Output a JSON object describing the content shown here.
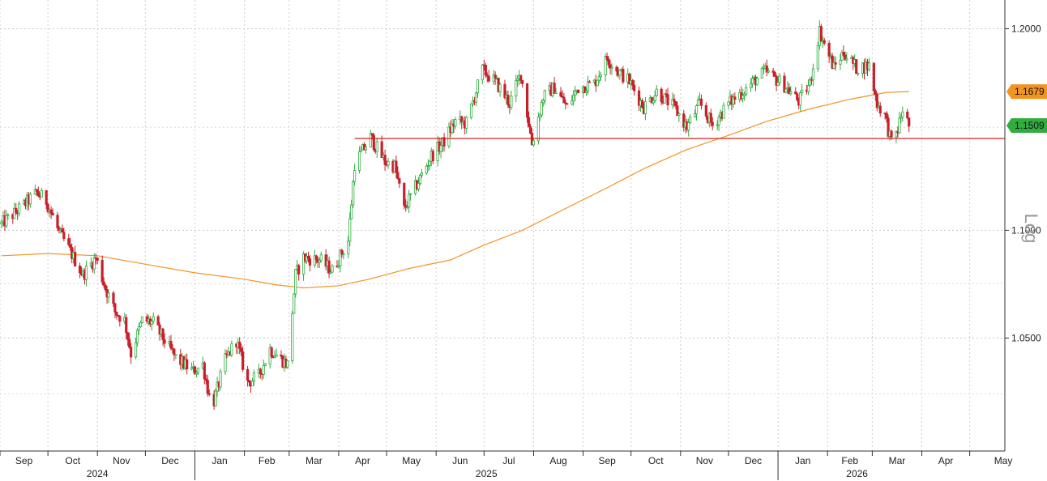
{
  "chart_data": {
    "type": "candlestick",
    "scale": "log",
    "scale_label": "Log",
    "grid": true,
    "ylim": [
      1.0,
      1.215
    ],
    "y_ticks": [
      {
        "value": 1.2,
        "label": "1.2000"
      },
      {
        "value": 1.1,
        "label": "1.1000"
      },
      {
        "value": 1.05,
        "label": "1.0500"
      }
    ],
    "month_ticks": [
      "Sep",
      "Oct",
      "Nov",
      "Dec",
      "Jan",
      "Feb",
      "Mar",
      "Apr",
      "May",
      "Jun",
      "Jul",
      "Aug",
      "Sep",
      "Oct",
      "Nov",
      "Dec",
      "Jan",
      "Feb",
      "Mar",
      "Apr",
      "May"
    ],
    "years": [
      "2024",
      "2025",
      "2026"
    ],
    "support_level": 1.1445,
    "price_tags": [
      {
        "value": 1.1679,
        "label": "1.1679",
        "color": "#f29422"
      },
      {
        "value": 1.1509,
        "label": "1.1509",
        "color": "#2fae3f"
      }
    ],
    "colors": {
      "up": "#2fae3f",
      "down": "#c8202b",
      "moving_average": "#f29422",
      "support_line": "#d42222"
    },
    "close_path": [
      [
        "2024-09-02",
        1.103
      ],
      [
        "2024-09-10",
        1.108
      ],
      [
        "2024-09-24",
        1.118
      ],
      [
        "2024-09-30",
        1.114
      ],
      [
        "2024-10-08",
        1.099
      ],
      [
        "2024-10-15",
        1.09
      ],
      [
        "2024-10-23",
        1.079
      ],
      [
        "2024-10-31",
        1.087
      ],
      [
        "2024-11-06",
        1.073
      ],
      [
        "2024-11-12",
        1.062
      ],
      [
        "2024-11-18",
        1.058
      ],
      [
        "2024-11-22",
        1.043
      ],
      [
        "2024-11-29",
        1.058
      ],
      [
        "2024-12-06",
        1.057
      ],
      [
        "2024-12-12",
        1.05
      ],
      [
        "2024-12-20",
        1.041
      ],
      [
        "2024-12-31",
        1.035
      ],
      [
        "2025-01-06",
        1.038
      ],
      [
        "2025-01-10",
        1.024
      ],
      [
        "2025-01-13",
        1.022
      ],
      [
        "2025-01-20",
        1.04
      ],
      [
        "2025-01-27",
        1.049
      ],
      [
        "2025-02-03",
        1.03
      ],
      [
        "2025-02-10",
        1.033
      ],
      [
        "2025-02-17",
        1.045
      ],
      [
        "2025-02-28",
        1.038
      ],
      [
        "2025-03-05",
        1.079
      ],
      [
        "2025-03-10",
        1.087
      ],
      [
        "2025-03-20",
        1.086
      ],
      [
        "2025-03-28",
        1.081
      ],
      [
        "2025-04-07",
        1.095
      ],
      [
        "2025-04-11",
        1.132
      ],
      [
        "2025-04-21",
        1.145
      ],
      [
        "2025-04-30",
        1.133
      ],
      [
        "2025-05-06",
        1.131
      ],
      [
        "2025-05-12",
        1.11
      ],
      [
        "2025-05-20",
        1.122
      ],
      [
        "2025-05-29",
        1.136
      ],
      [
        "2025-06-05",
        1.142
      ],
      [
        "2025-06-13",
        1.153
      ],
      [
        "2025-06-20",
        1.152
      ],
      [
        "2025-06-30",
        1.179
      ],
      [
        "2025-07-09",
        1.172
      ],
      [
        "2025-07-17",
        1.162
      ],
      [
        "2025-07-24",
        1.177
      ],
      [
        "2025-07-31",
        1.142
      ],
      [
        "2025-08-07",
        1.165
      ],
      [
        "2025-08-14",
        1.17
      ],
      [
        "2025-08-22",
        1.16
      ],
      [
        "2025-08-29",
        1.17
      ],
      [
        "2025-09-08",
        1.172
      ],
      [
        "2025-09-16",
        1.185
      ],
      [
        "2025-09-22",
        1.179
      ],
      [
        "2025-09-30",
        1.173
      ],
      [
        "2025-10-09",
        1.16
      ],
      [
        "2025-10-17",
        1.168
      ],
      [
        "2025-10-28",
        1.16
      ],
      [
        "2025-11-05",
        1.15
      ],
      [
        "2025-11-13",
        1.162
      ],
      [
        "2025-11-21",
        1.151
      ],
      [
        "2025-12-01",
        1.162
      ],
      [
        "2025-12-10",
        1.168
      ],
      [
        "2025-12-18",
        1.174
      ],
      [
        "2025-12-24",
        1.178
      ],
      [
        "2026-01-05",
        1.171
      ],
      [
        "2026-01-14",
        1.163
      ],
      [
        "2026-01-21",
        1.172
      ],
      [
        "2026-01-27",
        1.199
      ],
      [
        "2026-01-30",
        1.192
      ],
      [
        "2026-02-05",
        1.18
      ],
      [
        "2026-02-11",
        1.188
      ],
      [
        "2026-02-19",
        1.18
      ],
      [
        "2026-02-27",
        1.181
      ],
      [
        "2026-03-04",
        1.162
      ],
      [
        "2026-03-09",
        1.156
      ],
      [
        "2026-03-13",
        1.142
      ],
      [
        "2026-03-17",
        1.149
      ],
      [
        "2026-03-20",
        1.159
      ],
      [
        "2026-03-24",
        1.1509
      ]
    ],
    "moving_average_path": [
      [
        "2024-09-02",
        1.088
      ],
      [
        "2024-10-01",
        1.089
      ],
      [
        "2024-11-01",
        1.088
      ],
      [
        "2024-12-01",
        1.084
      ],
      [
        "2025-01-01",
        1.08
      ],
      [
        "2025-02-01",
        1.077
      ],
      [
        "2025-02-20",
        1.0745
      ],
      [
        "2025-03-10",
        1.073
      ],
      [
        "2025-04-01",
        1.074
      ],
      [
        "2025-04-20",
        1.077
      ],
      [
        "2025-05-15",
        1.082
      ],
      [
        "2025-06-10",
        1.086
      ],
      [
        "2025-07-01",
        1.093
      ],
      [
        "2025-07-25",
        1.1
      ],
      [
        "2025-08-20",
        1.11
      ],
      [
        "2025-09-15",
        1.12
      ],
      [
        "2025-10-10",
        1.13
      ],
      [
        "2025-11-05",
        1.139
      ],
      [
        "2025-12-01",
        1.146
      ],
      [
        "2025-12-25",
        1.153
      ],
      [
        "2026-01-20",
        1.159
      ],
      [
        "2026-02-15",
        1.164
      ],
      [
        "2026-03-10",
        1.1675
      ],
      [
        "2026-03-24",
        1.1679
      ]
    ]
  }
}
